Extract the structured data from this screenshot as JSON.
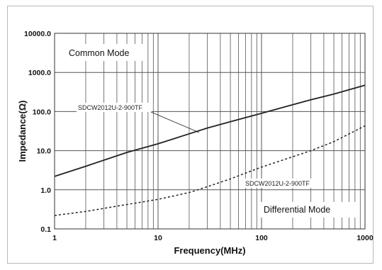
{
  "chart_data": {
    "type": "line",
    "xlabel": "Frequency(MHz)",
    "ylabel": "Impedance(Ω)",
    "x_scale": "log",
    "y_scale": "log",
    "xlim": [
      1,
      1000
    ],
    "ylim": [
      0.1,
      10000
    ],
    "grid": true,
    "x_ticks": [
      {
        "value": 1,
        "label": "1"
      },
      {
        "value": 10,
        "label": "10"
      },
      {
        "value": 100,
        "label": "100"
      },
      {
        "value": 1000,
        "label": "1000"
      }
    ],
    "y_ticks": [
      {
        "value": 0.1,
        "label": "0.1"
      },
      {
        "value": 1,
        "label": "1.0"
      },
      {
        "value": 10,
        "label": "10.0"
      },
      {
        "value": 100,
        "label": "100.0"
      },
      {
        "value": 1000,
        "label": "1000.0"
      },
      {
        "value": 10000,
        "label": "10000.0"
      }
    ],
    "annotations": {
      "common_mode": "Common Mode",
      "differential_mode": "Differential Mode"
    },
    "series": [
      {
        "name": "SDCW2012U-2-900TF",
        "mode": "Common Mode",
        "style": "solid",
        "color": "#222222",
        "x": [
          1,
          2,
          5,
          10,
          20,
          30,
          50,
          100,
          200,
          300,
          500,
          1000
        ],
        "y": [
          2.2,
          4,
          9,
          15,
          27,
          38,
          55,
          90,
          150,
          200,
          280,
          470
        ]
      },
      {
        "name": "SDCW2012U-2-900TF",
        "mode": "Differential Mode",
        "style": "dashed",
        "color": "#222222",
        "x": [
          1,
          2,
          5,
          10,
          20,
          30,
          50,
          100,
          200,
          300,
          500,
          1000
        ],
        "y": [
          0.22,
          0.28,
          0.42,
          0.57,
          0.85,
          1.2,
          1.9,
          3.8,
          7,
          10,
          17,
          43
        ]
      }
    ]
  }
}
